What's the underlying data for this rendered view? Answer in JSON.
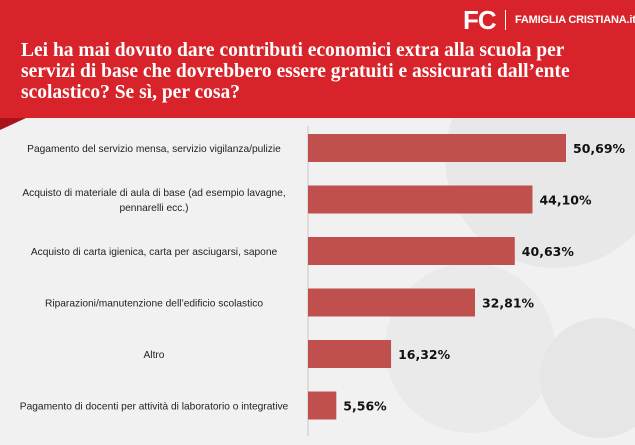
{
  "header": {
    "logo_mark": "FC",
    "logo_text": "FAMIGLIA CRISTIANA.it",
    "title": "Lei ha mai dovuto dare contributi economici extra alla scuola per servizi di base che dovrebbero essere gratuiti e assicurati dall’ente scolastico? Se sì, per cosa?"
  },
  "colors": {
    "header_bg": "#d8232a",
    "bar": "#c0504d",
    "background": "#f1f1f1"
  },
  "chart_data": {
    "type": "bar",
    "orientation": "horizontal",
    "title": "Lei ha mai dovuto dare contributi economici extra alla scuola per servizi di base che dovrebbero essere gratuiti e assicurati dall’ente scolastico? Se sì, per cosa?",
    "xlabel": "",
    "ylabel": "",
    "xlim": [
      0,
      50.69
    ],
    "grid": false,
    "legend": "none",
    "categories": [
      [
        "Pagamento del servizio mensa, servizio vigilanza/pulizie"
      ],
      [
        "Acquisto di materiale di aula di base (ad esempio lavagne,",
        "pennarelli ecc.)"
      ],
      [
        "Acquisto di carta igienica, carta per asciugarsi, sapone"
      ],
      [
        "Riparazioni/manutenzione dell’edificio scolastico"
      ],
      [
        "Altro"
      ],
      [
        "Pagamento di docenti per attività di laboratorio o integrative"
      ]
    ],
    "values": [
      50.69,
      44.1,
      40.63,
      32.81,
      16.32,
      5.56
    ],
    "value_labels": [
      "50,69%",
      "44,10%",
      "40,63%",
      "32,81%",
      "16,32%",
      "5,56%"
    ]
  }
}
